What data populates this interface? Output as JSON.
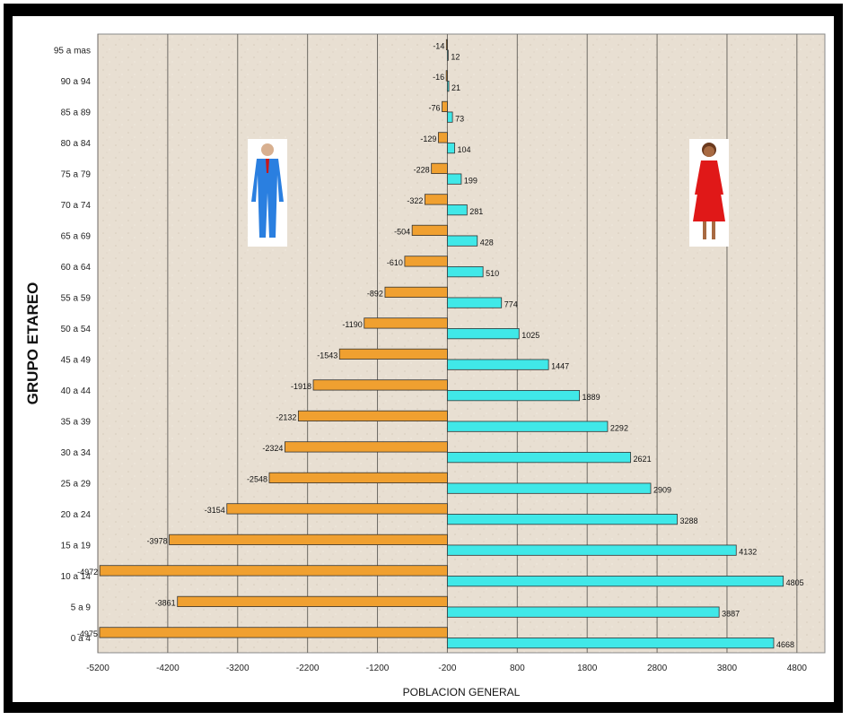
{
  "chart_data": {
    "type": "bar",
    "orientation": "horizontal",
    "title": "",
    "xlabel": "POBLACION GENERAL",
    "ylabel": "GRUPO ETAREO",
    "xlim": [
      -5200,
      5200
    ],
    "x_ticks": [
      "-5200",
      "-4200",
      "-3200",
      "-2200",
      "-1200",
      "-200",
      "800",
      "1800",
      "2800",
      "3800",
      "4800"
    ],
    "grid": true,
    "categories": [
      "0 a 4",
      "5 a 9",
      "10 a 14",
      "15 a 19",
      "20 a 24",
      "25 a 29",
      "30 a 34",
      "35 a 39",
      "40 a 44",
      "45 a 49",
      "50 a 54",
      "55 a 59",
      "60 a 64",
      "65 a 69",
      "70 a 74",
      "75 a 79",
      "80 a 84",
      "85 a 89",
      "90 a 94",
      "95 a mas"
    ],
    "series": [
      {
        "side": "left",
        "color": "#F0A030",
        "values": [
          -4975,
          -3861,
          -4972,
          -3978,
          -3154,
          -2548,
          -2324,
          -2132,
          -1918,
          -1543,
          -1190,
          -892,
          -610,
          -504,
          -322,
          -228,
          -129,
          -76,
          -16,
          -14
        ],
        "labels": [
          "-4975",
          "-3861",
          "-4972",
          "-3978",
          "-3154",
          "-2548",
          "-2324",
          "-2132",
          "-1918",
          "-1543",
          "-1190",
          "-892",
          "-610",
          "-504",
          "-322",
          "-228",
          "-129",
          "-76",
          "-16",
          "-14"
        ]
      },
      {
        "side": "right",
        "color": "#40E8E8",
        "values": [
          4668,
          3887,
          4805,
          4132,
          3288,
          2909,
          2621,
          2292,
          1889,
          1447,
          1025,
          774,
          510,
          428,
          281,
          199,
          104,
          73,
          21,
          12
        ],
        "labels": [
          "4668",
          "3887",
          "4805",
          "4132",
          "3288",
          "2909",
          "2621",
          "2292",
          "1889",
          "1447",
          "1025",
          "774",
          "510",
          "428",
          "281",
          "199",
          "104",
          "73",
          "21",
          "12"
        ]
      }
    ]
  },
  "icons": {
    "male": "man-in-blue-suit-icon",
    "female": "woman-in-red-dress-icon"
  }
}
